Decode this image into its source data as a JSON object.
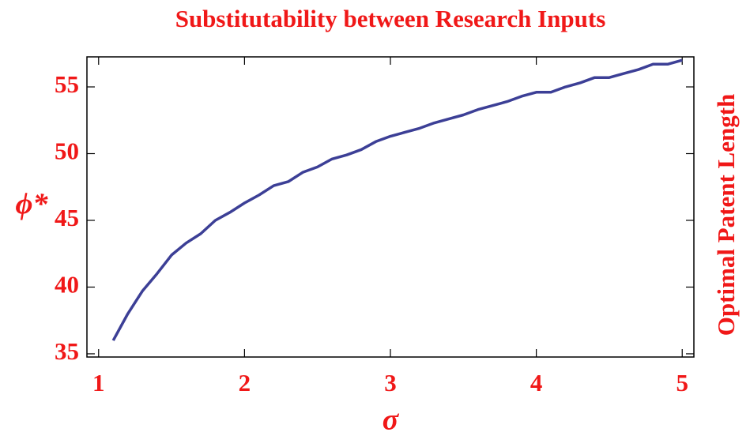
{
  "chart_data": {
    "type": "line",
    "title": "Substitutability between Research Inputs",
    "x_label": "σ",
    "y_label": "ϕ*",
    "y2_label": "Optimal Patent Length",
    "x": [
      1.1,
      1.2,
      1.3,
      1.4,
      1.5,
      1.6,
      1.7,
      1.8,
      1.9,
      2.0,
      2.1,
      2.2,
      2.3,
      2.4,
      2.5,
      2.6,
      2.7,
      2.8,
      2.9,
      3.0,
      3.1,
      3.2,
      3.3,
      3.4,
      3.5,
      3.6,
      3.7,
      3.8,
      3.9,
      4.0,
      4.1,
      4.2,
      4.3,
      4.4,
      4.5,
      4.6,
      4.7,
      4.8,
      4.9,
      5.0
    ],
    "values": [
      36.0,
      38.0,
      39.7,
      41.0,
      42.4,
      43.3,
      44.0,
      45.0,
      45.6,
      46.3,
      46.9,
      47.6,
      47.9,
      48.6,
      49.0,
      49.6,
      49.9,
      50.3,
      50.9,
      51.3,
      51.6,
      51.9,
      52.3,
      52.6,
      52.9,
      53.3,
      53.6,
      53.9,
      54.3,
      54.6,
      54.6,
      55.0,
      55.3,
      55.7,
      55.7,
      56.0,
      56.3,
      56.7,
      56.7,
      57.0
    ],
    "color": "#3c3f96",
    "xlim": [
      0.92,
      5.08
    ],
    "ylim": [
      34.76,
      57.25
    ],
    "xticks": [
      1,
      2,
      3,
      4,
      5
    ],
    "yticks": [
      35,
      40,
      45,
      50,
      55
    ],
    "grid": false
  }
}
